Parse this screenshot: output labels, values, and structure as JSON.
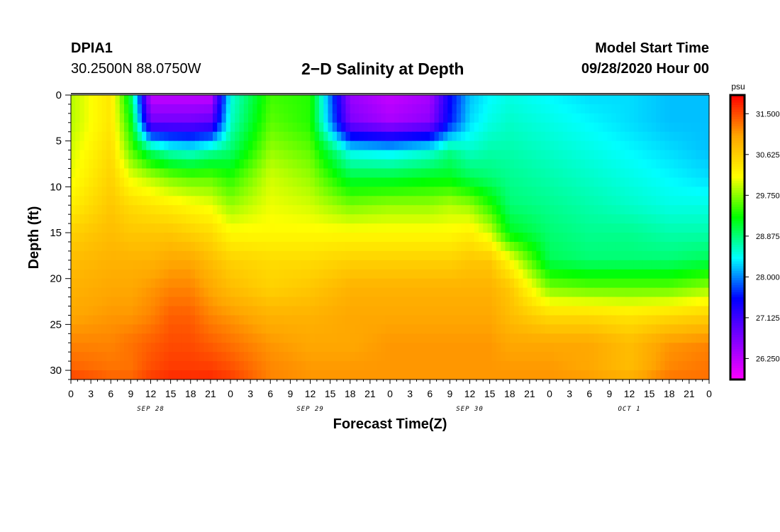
{
  "header": {
    "station_id": "DPIA1",
    "coordinates": "30.2500N 88.0750W",
    "title": "2−D Salinity at Depth",
    "model_start_label": "Model Start Time",
    "model_start_value": "09/28/2020 Hour 00"
  },
  "chart_data": {
    "type": "heatmap",
    "title": "2-D Salinity at Depth",
    "xlabel": "Forecast Time(Z)",
    "ylabel": "Depth (ft)",
    "x_hours_range": [
      0,
      96
    ],
    "x_tick_step_hours": 3,
    "x_tick_labels": [
      "0",
      "3",
      "6",
      "9",
      "12",
      "15",
      "18",
      "21",
      "0",
      "3",
      "6",
      "9",
      "12",
      "15",
      "18",
      "21",
      "0",
      "3",
      "6",
      "9",
      "12",
      "15",
      "18",
      "21",
      "0",
      "3",
      "6",
      "9",
      "12",
      "15",
      "18",
      "21",
      "0"
    ],
    "date_labels": [
      {
        "label": "SEP 28",
        "hour": 12
      },
      {
        "label": "SEP 29",
        "hour": 36
      },
      {
        "label": "SEP 30",
        "hour": 60
      },
      {
        "label": "OCT 1",
        "hour": 84
      }
    ],
    "y_range": [
      0,
      31
    ],
    "y_ticks": [
      0,
      5,
      10,
      15,
      20,
      25,
      30
    ],
    "y_inverted": true,
    "colorbar": {
      "units": "psu",
      "min": 25.8,
      "max": 31.9,
      "tick_values": [
        31.5,
        30.625,
        29.75,
        28.875,
        28.0,
        27.125,
        26.25
      ],
      "tick_labels": [
        "31.500",
        "30.625",
        "29.750",
        "28.875",
        "28.000",
        "27.125",
        "26.250"
      ],
      "colormap": [
        "#ff00ff",
        "#8000ff",
        "#0000ff",
        "#00ffff",
        "#00ff00",
        "#ffff00",
        "#ffa500",
        "#ff0000"
      ]
    },
    "depth_levels_ft": [
      0,
      3,
      6,
      9,
      12,
      15,
      18,
      21,
      24,
      27,
      30,
      31
    ],
    "time_hours": [
      0,
      6,
      9,
      12,
      15,
      18,
      21,
      24,
      30,
      36,
      42,
      48,
      54,
      57,
      60,
      63,
      66,
      72,
      78,
      84,
      90,
      96
    ],
    "salinity_psu": [
      [
        29.9,
        30.4,
        29.0,
        26.2,
        26.2,
        26.2,
        26.2,
        28.5,
        29.5,
        29.4,
        26.5,
        26.2,
        26.4,
        27.5,
        28.2,
        28.4,
        28.5,
        28.4,
        28.3,
        28.3,
        28.2,
        28.2
      ],
      [
        29.9,
        30.4,
        29.3,
        26.8,
        26.8,
        26.8,
        26.9,
        28.6,
        29.6,
        29.4,
        26.7,
        26.4,
        26.6,
        27.6,
        28.3,
        28.5,
        28.6,
        28.5,
        28.4,
        28.3,
        28.2,
        28.2
      ],
      [
        30.0,
        30.5,
        29.6,
        28.9,
        28.6,
        28.5,
        28.7,
        28.9,
        29.8,
        29.6,
        28.4,
        28.3,
        28.5,
        28.8,
        28.6,
        28.7,
        28.7,
        28.6,
        28.5,
        28.4,
        28.3,
        28.2
      ],
      [
        30.1,
        30.6,
        30.1,
        29.9,
        29.7,
        29.6,
        29.6,
        29.4,
        30.0,
        29.8,
        29.1,
        29.1,
        29.2,
        29.2,
        29.0,
        28.9,
        28.8,
        28.7,
        28.6,
        28.5,
        28.4,
        28.3
      ],
      [
        30.3,
        30.7,
        30.5,
        30.4,
        30.3,
        30.2,
        30.1,
        29.8,
        30.1,
        30.0,
        29.7,
        29.8,
        29.8,
        29.9,
        29.8,
        29.4,
        28.9,
        28.8,
        28.7,
        28.6,
        28.5,
        28.5
      ],
      [
        30.6,
        30.8,
        30.7,
        30.7,
        30.7,
        30.6,
        30.5,
        30.2,
        30.2,
        30.2,
        30.2,
        30.2,
        30.2,
        30.2,
        30.3,
        30.0,
        29.2,
        28.9,
        28.8,
        28.8,
        28.7,
        28.7
      ],
      [
        30.8,
        30.9,
        30.9,
        30.9,
        31.0,
        31.0,
        30.8,
        30.6,
        30.5,
        30.5,
        30.6,
        30.6,
        30.6,
        30.6,
        30.7,
        30.7,
        30.2,
        29.0,
        28.9,
        28.9,
        28.9,
        29.0
      ],
      [
        30.9,
        31.0,
        31.0,
        31.1,
        31.2,
        31.2,
        31.0,
        30.8,
        30.6,
        30.7,
        30.9,
        30.9,
        30.9,
        30.9,
        30.9,
        30.9,
        30.7,
        29.7,
        29.6,
        29.6,
        29.6,
        29.8
      ],
      [
        31.0,
        31.1,
        31.1,
        31.2,
        31.4,
        31.4,
        31.2,
        31.1,
        30.9,
        30.9,
        31.0,
        31.0,
        31.0,
        31.0,
        31.0,
        31.0,
        30.8,
        30.5,
        30.5,
        30.4,
        30.5,
        30.6
      ],
      [
        31.2,
        31.2,
        31.3,
        31.4,
        31.5,
        31.5,
        31.4,
        31.3,
        31.1,
        31.0,
        31.0,
        31.1,
        31.1,
        31.1,
        31.1,
        31.1,
        31.0,
        31.0,
        31.0,
        30.8,
        31.1,
        31.2
      ],
      [
        31.4,
        31.3,
        31.3,
        31.5,
        31.6,
        31.6,
        31.6,
        31.5,
        31.2,
        31.1,
        31.1,
        31.1,
        31.1,
        31.1,
        31.1,
        31.1,
        31.1,
        31.1,
        31.0,
        30.8,
        31.2,
        31.3
      ],
      [
        31.6,
        31.4,
        31.4,
        31.6,
        31.7,
        31.7,
        31.7,
        31.6,
        31.2,
        31.1,
        31.1,
        31.1,
        31.1,
        31.1,
        31.1,
        31.1,
        31.1,
        31.1,
        31.1,
        31.0,
        31.3,
        31.3
      ]
    ]
  }
}
